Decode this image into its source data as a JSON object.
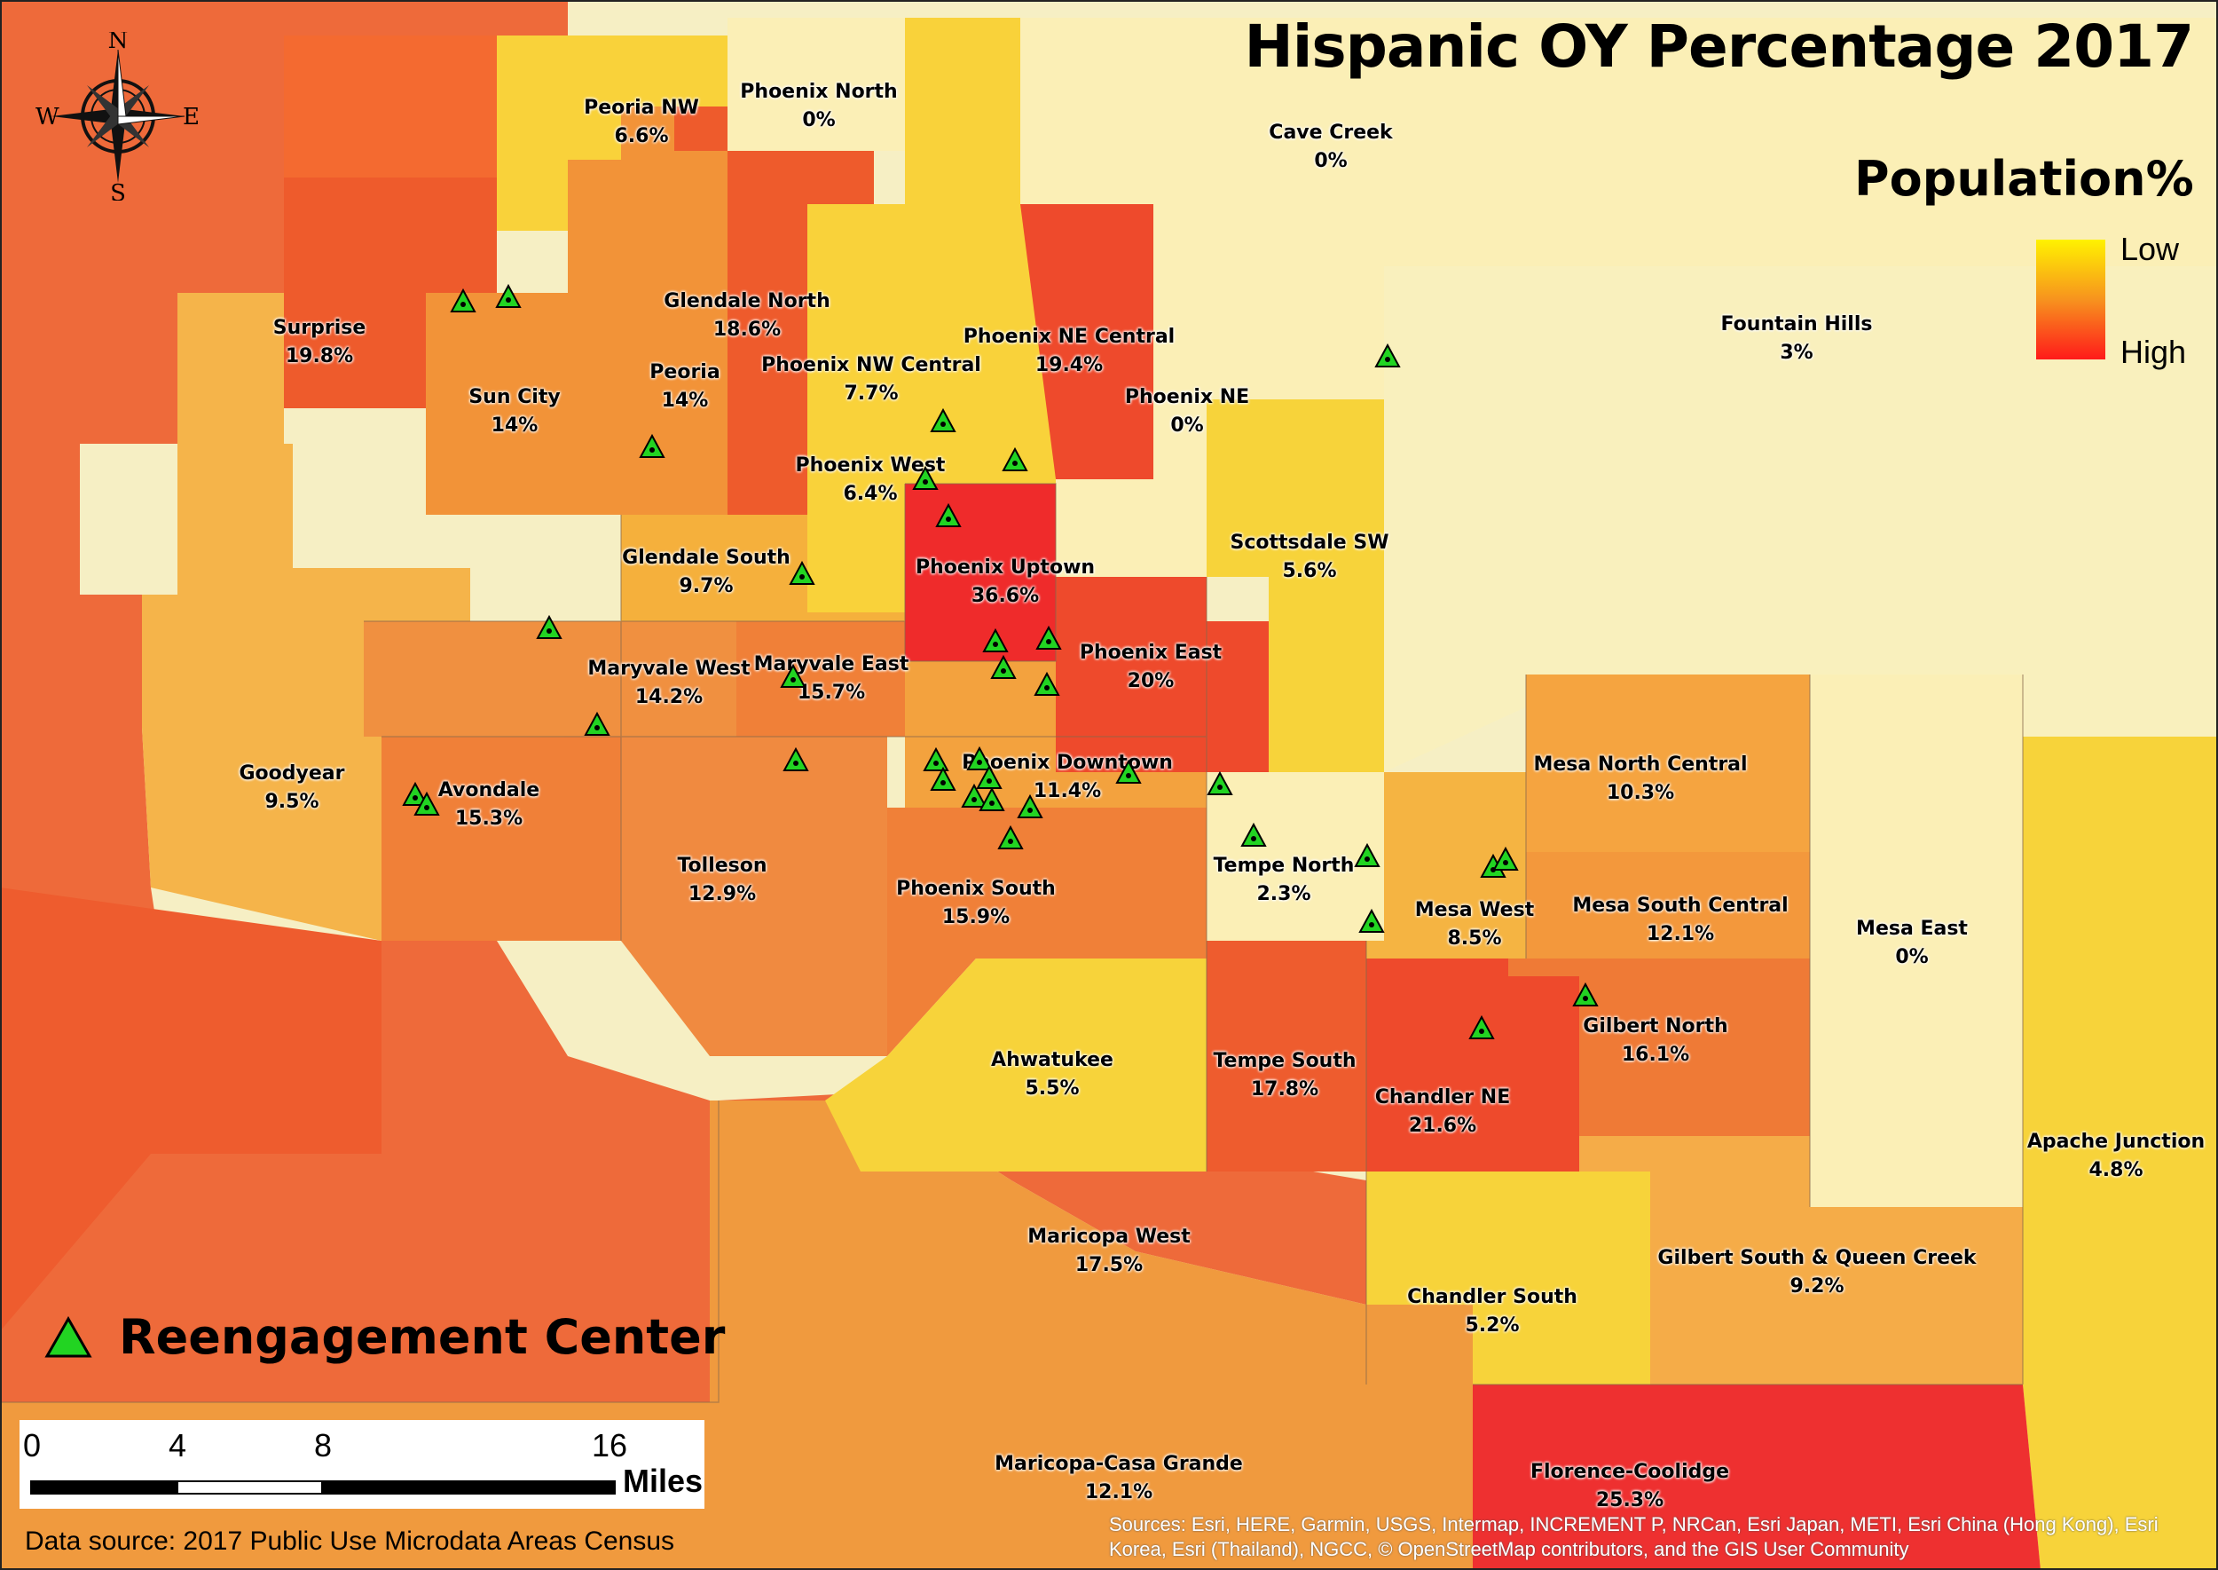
{
  "title": "Hispanic OY Percentage 2017",
  "legend": {
    "title": "Population%",
    "low_label": "Low",
    "high_label": "High",
    "ramp_colors": [
      "#fff200",
      "#f7931e",
      "#ff1a1a"
    ]
  },
  "compass": {
    "north": "N",
    "south": "S",
    "east": "E",
    "west": "W"
  },
  "reengagement_legend": {
    "label": "Reengagement Center",
    "marker_color": "#22d422"
  },
  "scale_bar": {
    "tick_labels": [
      "0",
      "4",
      "8",
      "16"
    ],
    "unit": "Miles"
  },
  "data_source": "Data source: 2017 Public Use Microdata Areas Census",
  "credits": "Sources: Esri, HERE, Garmin, USGS, Intermap, INCREMENT P, NRCan, Esri Japan, METI, Esri China (Hong Kong), Esri Korea, Esri (Thailand), NGCC, © OpenStreetMap contributors, and the GIS User Community",
  "regions": [
    {
      "name": "Peoria NW",
      "value": "6.6%",
      "color": "#f9d23a"
    },
    {
      "name": "Phoenix North",
      "value": "0%",
      "color": "#fbefb6"
    },
    {
      "name": "Cave Creek",
      "value": "0%",
      "color": "#fbefb6"
    },
    {
      "name": "Surprise",
      "value": "19.8%",
      "color": "#ee5b2c"
    },
    {
      "name": "Glendale North",
      "value": "18.6%",
      "color": "#ee5b2c"
    },
    {
      "name": "Phoenix NE Central",
      "value": "19.4%",
      "color": "#ee4a2c"
    },
    {
      "name": "Sun City",
      "value": "14%",
      "color": "#f29338"
    },
    {
      "name": "Peoria",
      "value": "14%",
      "color": "#f29338"
    },
    {
      "name": "Phoenix NW Central",
      "value": "7.7%",
      "color": "#f9d23a"
    },
    {
      "name": "Phoenix NE",
      "value": "0%",
      "color": "#fbefb6"
    },
    {
      "name": "Fountain Hills",
      "value": "3%",
      "color": "#fbefb6"
    },
    {
      "name": "Phoenix West",
      "value": "6.4%",
      "color": "#f9d23a"
    },
    {
      "name": "Scottsdale SW",
      "value": "5.6%",
      "color": "#f7d33a"
    },
    {
      "name": "Glendale South",
      "value": "9.7%",
      "color": "#f5b03c"
    },
    {
      "name": "Phoenix Uptown",
      "value": "36.6%",
      "color": "#ef2b2b"
    },
    {
      "name": "Phoenix East",
      "value": "20%",
      "color": "#ee4a2c"
    },
    {
      "name": "Maryvale West",
      "value": "14.2%",
      "color": "#f09040"
    },
    {
      "name": "Maryvale East",
      "value": "15.7%",
      "color": "#f08038"
    },
    {
      "name": "Goodyear",
      "value": "9.5%",
      "color": "#f5b44a"
    },
    {
      "name": "Avondale",
      "value": "15.3%",
      "color": "#f08038"
    },
    {
      "name": "Phoenix Downtown",
      "value": "11.4%",
      "color": "#f3a23e"
    },
    {
      "name": "Mesa North Central",
      "value": "10.3%",
      "color": "#f5a440"
    },
    {
      "name": "Tolleson",
      "value": "12.9%",
      "color": "#f08a40"
    },
    {
      "name": "Tempe North",
      "value": "2.3%",
      "color": "#fbefb6"
    },
    {
      "name": "Phoenix South",
      "value": "15.9%",
      "color": "#f08038"
    },
    {
      "name": "Mesa South Central",
      "value": "12.1%",
      "color": "#f3983c"
    },
    {
      "name": "Mesa West",
      "value": "8.5%",
      "color": "#f5b442"
    },
    {
      "name": "Mesa East",
      "value": "0%",
      "color": "#fbefb6"
    },
    {
      "name": "Gilbert North",
      "value": "16.1%",
      "color": "#ef7a36"
    },
    {
      "name": "Ahwatukee",
      "value": "5.5%",
      "color": "#f7d33a"
    },
    {
      "name": "Tempe South",
      "value": "17.8%",
      "color": "#ee5c2e"
    },
    {
      "name": "Chandler NE",
      "value": "21.6%",
      "color": "#ee4a2c"
    },
    {
      "name": "Apache Junction",
      "value": "4.8%",
      "color": "#f7d33a"
    },
    {
      "name": "Maricopa West",
      "value": "17.5%",
      "color": "#ee5c2e"
    },
    {
      "name": "Gilbert South & Queen Creek",
      "value": "9.2%",
      "color": "#f5ac48"
    },
    {
      "name": "Chandler South",
      "value": "5.2%",
      "color": "#f7d33a"
    },
    {
      "name": "Maricopa-Casa Grande",
      "value": "12.1%",
      "color": "#f3983c"
    },
    {
      "name": "Florence-Coolidge",
      "value": "25.3%",
      "color": "#ee3030"
    }
  ]
}
